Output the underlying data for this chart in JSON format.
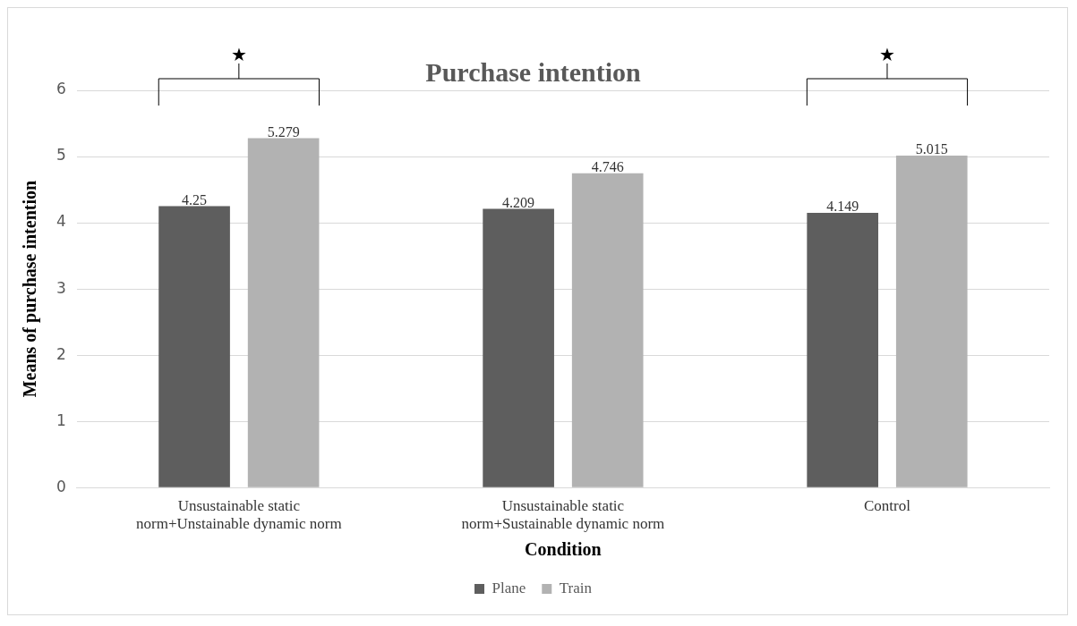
{
  "chart_data": {
    "type": "bar",
    "title": "Purchase intention",
    "xlabel": "Condition",
    "ylabel": "Means of purchase intention",
    "categories": [
      "Unsustainable static norm+Unstainable dynamic norm",
      "Unsustainable static norm+Sustainable dynamic norm",
      "Control"
    ],
    "series": [
      {
        "name": "Plane",
        "color": "#5e5e5e",
        "values": [
          4.25,
          4.209,
          4.149
        ]
      },
      {
        "name": "Train",
        "color": "#b2b2b2",
        "values": [
          5.279,
          4.746,
          5.015
        ]
      }
    ],
    "ylim": [
      0,
      6
    ],
    "yticks": [
      0,
      1,
      2,
      3,
      4,
      5,
      6
    ],
    "grid": "y",
    "legend": "bottom",
    "data_labels": true,
    "annotations": [
      "★",
      "★"
    ]
  }
}
